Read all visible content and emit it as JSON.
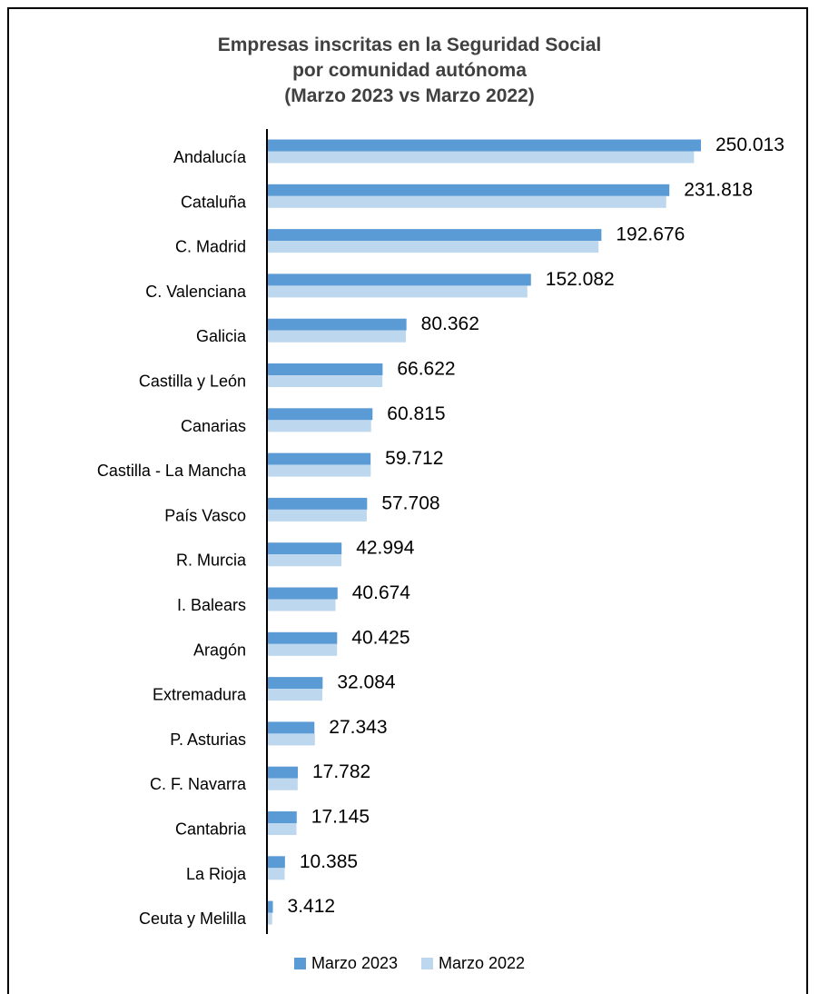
{
  "chart_data": {
    "type": "bar",
    "orientation": "horizontal",
    "title": [
      "Empresas inscritas en la Seguridad Social",
      "por comunidad autónoma",
      "(Marzo 2023 vs Marzo 2022)"
    ],
    "categories": [
      "Andalucía",
      "Cataluña",
      "C. Madrid",
      "C. Valenciana",
      "Galicia",
      "Castilla y León",
      "Canarias",
      "Castilla - La Mancha",
      "País Vasco",
      "R. Murcia",
      "I. Balears",
      "Aragón",
      "Extremadura",
      "P. Asturias",
      "C. F. Navarra",
      "Cantabria",
      "La Rioja",
      "Ceuta y Melilla"
    ],
    "series": [
      {
        "name": "Marzo 2023",
        "color": "#5b9bd5",
        "values": [
          250013,
          231818,
          192676,
          152082,
          80362,
          66622,
          60815,
          59712,
          57708,
          42994,
          40674,
          40425,
          32084,
          27343,
          17782,
          17145,
          10385,
          3412
        ]
      },
      {
        "name": "Marzo 2022",
        "color": "#bdd7ee",
        "values": [
          246000,
          230000,
          191000,
          150000,
          80000,
          66500,
          60000,
          59800,
          57500,
          42900,
          39500,
          40400,
          31900,
          27600,
          17700,
          17000,
          10200,
          3000
        ]
      }
    ],
    "data_labels": [
      "250.013",
      "231.818",
      "192.676",
      "152.082",
      "80.362",
      "66.622",
      "60.815",
      "59.712",
      "57.708",
      "42.994",
      "40.674",
      "40.425",
      "32.084",
      "27.343",
      "17.782",
      "17.145",
      "10.385",
      "3.412"
    ],
    "xlim": [
      0,
      260000
    ],
    "grid": false,
    "legend_position": "bottom"
  }
}
